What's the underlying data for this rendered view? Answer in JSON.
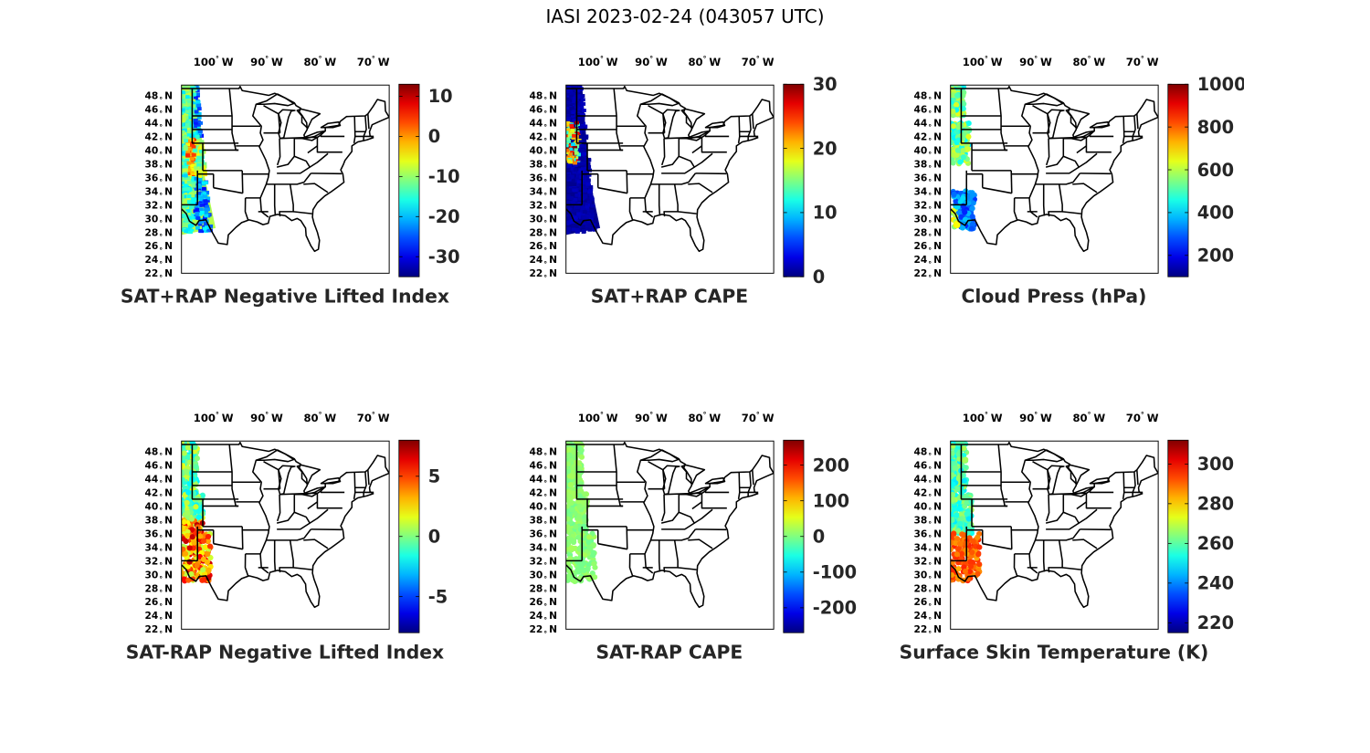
{
  "title": "IASI 2023-02-24 (043057 UTC)",
  "lon_ticks": [
    "100",
    "90",
    "80",
    "70"
  ],
  "lon_deg": "°",
  "lon_suffix": "W",
  "lat_ticks": [
    "48",
    "46",
    "44",
    "42",
    "40",
    "38",
    "36",
    "34",
    "32",
    "30",
    "28",
    "26",
    "24",
    "22"
  ],
  "lat_deg": "°",
  "lat_suffix": "N",
  "colormap": "jet",
  "colors": {
    "state_borders": "#000000",
    "background": "#ffffff"
  },
  "panels": [
    {
      "id": "lifted-index-sat-rap",
      "title": "SAT+RAP Negative Lifted Index",
      "colorbar": {
        "ticks": [
          "10",
          "0",
          "-10",
          "-20",
          "-30"
        ],
        "values": [
          10,
          0,
          -10,
          -20,
          -30
        ],
        "range": [
          -35,
          13
        ]
      }
    },
    {
      "id": "cape-sat-rap",
      "title": "SAT+RAP CAPE",
      "colorbar": {
        "ticks": [
          "30",
          "20",
          "10",
          "0"
        ],
        "values": [
          30,
          20,
          10,
          0
        ],
        "range": [
          0,
          30
        ]
      }
    },
    {
      "id": "cloud-press",
      "title": "Cloud Press (hPa)",
      "colorbar": {
        "ticks": [
          "1000",
          "800",
          "600",
          "400",
          "200"
        ],
        "values": [
          1000,
          800,
          600,
          400,
          200
        ],
        "range": [
          100,
          1000
        ]
      }
    },
    {
      "id": "lifted-index-diff",
      "title": "SAT-RAP Negative Lifted Index",
      "colorbar": {
        "ticks": [
          "5",
          "0",
          "-5"
        ],
        "values": [
          5,
          0,
          -5
        ],
        "range": [
          -8,
          8
        ]
      }
    },
    {
      "id": "cape-diff",
      "title": "SAT-RAP CAPE",
      "colorbar": {
        "ticks": [
          "200",
          "100",
          "0",
          "-100",
          "-200"
        ],
        "values": [
          200,
          100,
          0,
          -100,
          -200
        ],
        "range": [
          -270,
          270
        ]
      }
    },
    {
      "id": "skin-temp",
      "title": "Surface Skin Temperature (K)",
      "colorbar": {
        "ticks": [
          "300",
          "280",
          "260",
          "240",
          "220"
        ],
        "values": [
          300,
          280,
          260,
          240,
          220
        ],
        "range": [
          215,
          312
        ]
      }
    }
  ]
}
